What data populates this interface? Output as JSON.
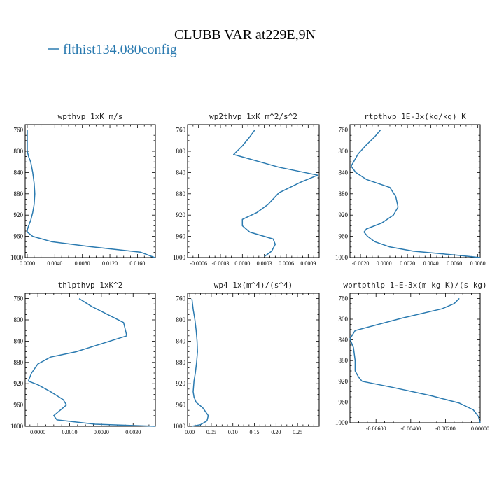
{
  "figure": {
    "title": "CLUBB VAR at229E,9N",
    "legend_label": "flthist134.080config",
    "line_color": "#2a7ab0"
  },
  "chart_data": [
    {
      "type": "line",
      "title": "wpthvp  1xK m/s",
      "ylim": [
        1000,
        750
      ],
      "yticks": [
        760,
        800,
        840,
        880,
        920,
        960,
        1000
      ],
      "xlim": [
        -0.0003,
        0.0186
      ],
      "xticks": [
        0.0,
        0.004,
        0.008,
        0.012,
        0.016
      ],
      "xtick_labels": [
        "0.0000",
        "0.0040",
        "0.0080",
        "0.0120",
        "0.0160"
      ],
      "series": [
        {
          "x": [
            0.0,
            0.0,
            0.0,
            0.0002,
            0.0005,
            0.0008,
            0.001,
            0.0011,
            0.001,
            0.0008,
            0.0005,
            0.0002,
            0.0,
            0.0,
            0.0008,
            0.0035,
            0.0095,
            0.0165,
            0.0185
          ],
          "y": [
            760,
            780,
            800,
            810,
            820,
            840,
            860,
            880,
            900,
            915,
            930,
            940,
            948,
            952,
            960,
            970,
            980,
            990,
            1000
          ]
        }
      ]
    },
    {
      "type": "line",
      "title": "wp2thvp  1xK m^2/s^2",
      "ylim": [
        1000,
        750
      ],
      "yticks": [
        760,
        800,
        840,
        880,
        920,
        960,
        1000
      ],
      "xlim": [
        -0.00075,
        0.00105
      ],
      "xticks": [
        -0.0006,
        -0.0003,
        0.0,
        0.0003,
        0.0006,
        0.0009
      ],
      "xtick_labels": [
        "-0.0006",
        "-0.0003",
        "0.0000",
        "0.0003",
        "0.0006",
        "0.0009"
      ],
      "series": [
        {
          "x": [
            0.00017,
            0.0001,
            0.0,
            -0.00012,
            0.0005,
            0.00103,
            0.0008,
            0.0005,
            0.00035,
            0.0002,
            0.0,
            0.0,
            0.0001,
            0.00042,
            0.00045,
            0.0004,
            0.0003
          ],
          "y": [
            760,
            773,
            790,
            806,
            830,
            845,
            858,
            878,
            900,
            915,
            928,
            940,
            952,
            965,
            975,
            988,
            998
          ]
        }
      ]
    },
    {
      "type": "line",
      "title": "rtpthvp  1E-3x(kg/kg) K",
      "ylim": [
        1000,
        750
      ],
      "yticks": [
        760,
        800,
        840,
        880,
        920,
        960,
        1000
      ],
      "xlim": [
        -0.0029,
        0.0082
      ],
      "xticks": [
        -0.002,
        0.0,
        0.002,
        0.004,
        0.006,
        0.008
      ],
      "xtick_labels": [
        "-0.0020",
        "0.0000",
        "0.0020",
        "0.0040",
        "0.0060",
        "0.0080"
      ],
      "series": [
        {
          "x": [
            -0.0003,
            -0.0008,
            -0.0015,
            -0.0022,
            -0.0028,
            -0.0024,
            -0.0015,
            0.0005,
            0.001,
            0.0012,
            0.0008,
            -0.0002,
            -0.0015,
            -0.0017,
            -0.0014,
            -0.0008,
            0.0005,
            0.0025,
            0.0065,
            0.0082
          ],
          "y": [
            760,
            773,
            788,
            805,
            828,
            840,
            853,
            868,
            885,
            905,
            920,
            935,
            946,
            952,
            960,
            970,
            980,
            988,
            996,
            1000
          ]
        }
      ]
    },
    {
      "type": "line",
      "title": "thlpthvp  1xK^2",
      "ylim": [
        1000,
        750
      ],
      "yticks": [
        760,
        800,
        840,
        880,
        920,
        960,
        1000
      ],
      "xlim": [
        -0.0004,
        0.0037
      ],
      "xticks": [
        0.0,
        0.001,
        0.002,
        0.003
      ],
      "xtick_labels": [
        "0.0000",
        "0.0010",
        "0.0020",
        "0.0030"
      ],
      "series": [
        {
          "x": [
            0.0013,
            0.0017,
            0.0022,
            0.0027,
            0.0028,
            0.002,
            0.0012,
            0.0004,
            0.0,
            -0.0002,
            -0.0003,
            0.0,
            0.0004,
            0.0008,
            0.0009,
            0.0007,
            0.0005,
            0.0006,
            0.0018,
            0.0037
          ],
          "y": [
            760,
            775,
            790,
            805,
            830,
            845,
            860,
            870,
            883,
            900,
            915,
            922,
            935,
            950,
            960,
            970,
            980,
            988,
            996,
            1000
          ]
        }
      ]
    },
    {
      "type": "line",
      "title": "wp4  1x(m^4)/(s^4)",
      "ylim": [
        1000,
        750
      ],
      "yticks": [
        760,
        800,
        840,
        880,
        920,
        960,
        1000
      ],
      "xlim": [
        -0.005,
        0.3
      ],
      "xticks": [
        0.0,
        0.05,
        0.1,
        0.15,
        0.2,
        0.25
      ],
      "xtick_labels": [
        "0.00",
        "0.05",
        "0.10",
        "0.15",
        "0.20",
        "0.25"
      ],
      "series": [
        {
          "x": [
            0.005,
            0.008,
            0.012,
            0.015,
            0.017,
            0.018,
            0.016,
            0.013,
            0.01,
            0.009,
            0.008,
            0.01,
            0.015,
            0.03,
            0.043,
            0.04,
            0.025,
            0.005
          ],
          "y": [
            760,
            780,
            800,
            820,
            840,
            860,
            880,
            900,
            915,
            925,
            935,
            945,
            955,
            965,
            980,
            990,
            997,
            1000
          ]
        }
      ]
    },
    {
      "type": "line",
      "title": "wprtpthlp  1-E-3x(m kg K)/(s kg)",
      "ylim": [
        1000,
        750
      ],
      "yticks": [
        760,
        800,
        840,
        880,
        920,
        960,
        1000
      ],
      "xlim": [
        -0.0075,
        0.0
      ],
      "xticks": [
        -0.006,
        -0.004,
        -0.002,
        0.0
      ],
      "xtick_labels": [
        "-0.00600",
        "-0.00400",
        "-0.00200",
        "0.00000"
      ],
      "series": [
        {
          "x": [
            -0.0012,
            -0.0015,
            -0.0022,
            -0.0045,
            -0.0072,
            -0.0075,
            -0.0073,
            -0.0072,
            -0.0072,
            -0.007,
            -0.0068,
            -0.005,
            -0.0028,
            -0.0012,
            -0.0004,
            -0.0001,
            0.0
          ],
          "y": [
            760,
            770,
            780,
            798,
            822,
            838,
            855,
            880,
            900,
            912,
            920,
            932,
            948,
            962,
            975,
            988,
            1000
          ]
        }
      ]
    }
  ]
}
